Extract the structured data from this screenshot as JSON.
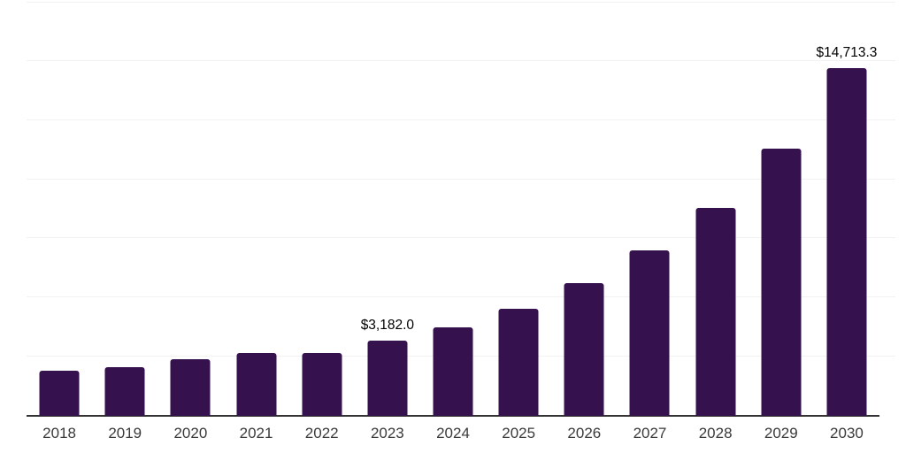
{
  "chart_data": {
    "type": "bar",
    "title": "",
    "xlabel": "",
    "ylabel": "",
    "categories": [
      "2018",
      "2019",
      "2020",
      "2021",
      "2022",
      "2023",
      "2024",
      "2025",
      "2026",
      "2027",
      "2028",
      "2029",
      "2030"
    ],
    "values": [
      1890,
      2040,
      2380,
      2670,
      2660,
      3182.0,
      3755,
      4515,
      5600,
      6975,
      8780,
      11285,
      14713.3
    ],
    "data_labels": [
      "",
      "",
      "",
      "",
      "",
      "$3,182.0",
      "",
      "",
      "",
      "",
      "",
      "",
      "$14,713.3"
    ],
    "ylim": [
      0,
      17500
    ],
    "y_gridlines": [
      2500,
      5000,
      7500,
      10000,
      12500,
      15000,
      17500
    ],
    "grid": "horizontal",
    "legend": "none",
    "colors": {
      "bar": "#35124E",
      "axis_line": "#333333",
      "gridline": "#F2F2F2",
      "tick_label": "#3A3A3A",
      "data_label": "#000000",
      "background": "#FFFFFF"
    }
  }
}
